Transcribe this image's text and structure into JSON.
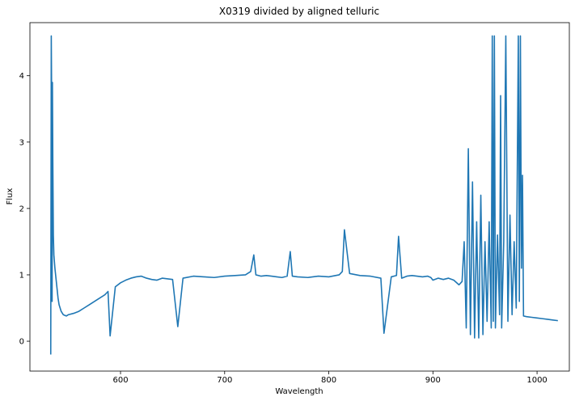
{
  "chart_data": {
    "type": "line",
    "title": "X0319 divided by aligned telluric",
    "xlabel": "Wavelength",
    "ylabel": "Flux",
    "xlim": [
      513,
      1031
    ],
    "ylim": [
      -0.45,
      4.8
    ],
    "xticks": [
      600,
      700,
      800,
      900,
      1000
    ],
    "yticks": [
      0,
      1,
      2,
      3,
      4
    ],
    "grid": false,
    "series": [
      {
        "color": "#1f77b4",
        "x": [
          533,
          533.5,
          534,
          534.3,
          534.6,
          535,
          535.5,
          536,
          537,
          538,
          539,
          540,
          541,
          542,
          543,
          545,
          548,
          550,
          555,
          560,
          565,
          570,
          575,
          580,
          585,
          588,
          590,
          595,
          600,
          605,
          610,
          615,
          620,
          625,
          630,
          635,
          640,
          650,
          655,
          660,
          670,
          680,
          690,
          700,
          710,
          720,
          725,
          728,
          730,
          735,
          740,
          745,
          750,
          755,
          760,
          763,
          765,
          770,
          780,
          790,
          800,
          810,
          813,
          815,
          820,
          830,
          840,
          850,
          853,
          860,
          865,
          867,
          870,
          875,
          880,
          890,
          895,
          898,
          900,
          905,
          910,
          915,
          920,
          925,
          928,
          930,
          932,
          934,
          936,
          938,
          940,
          942,
          944,
          946,
          948,
          950,
          952,
          954,
          956,
          957,
          958,
          959,
          960,
          962,
          964,
          965,
          966,
          968,
          970,
          972,
          974,
          976,
          978,
          980,
          982,
          983,
          984,
          985,
          986,
          987,
          990,
          995,
          1000,
          1005,
          1010,
          1015,
          1020
        ],
        "values": [
          -0.2,
          4.6,
          3.3,
          0.6,
          3.9,
          2.7,
          1.6,
          1.3,
          1.1,
          0.95,
          0.8,
          0.65,
          0.55,
          0.5,
          0.45,
          0.4,
          0.38,
          0.4,
          0.42,
          0.45,
          0.5,
          0.55,
          0.6,
          0.65,
          0.7,
          0.75,
          0.08,
          0.82,
          0.88,
          0.92,
          0.95,
          0.97,
          0.98,
          0.95,
          0.93,
          0.92,
          0.95,
          0.93,
          0.22,
          0.95,
          0.98,
          0.97,
          0.96,
          0.98,
          0.99,
          1.0,
          1.05,
          1.3,
          1.0,
          0.98,
          0.99,
          0.98,
          0.97,
          0.96,
          0.98,
          1.35,
          0.98,
          0.97,
          0.96,
          0.98,
          0.97,
          1.0,
          1.05,
          1.68,
          1.02,
          0.99,
          0.98,
          0.95,
          0.12,
          0.97,
          0.99,
          1.58,
          0.95,
          0.98,
          0.99,
          0.97,
          0.98,
          0.96,
          0.92,
          0.95,
          0.93,
          0.95,
          0.92,
          0.85,
          0.9,
          1.5,
          0.2,
          2.9,
          0.1,
          2.4,
          0.05,
          1.8,
          0.05,
          2.2,
          0.1,
          1.5,
          0.3,
          1.8,
          0.2,
          4.6,
          0.3,
          4.6,
          0.2,
          1.6,
          0.4,
          3.7,
          0.2,
          1.5,
          4.6,
          0.3,
          1.9,
          0.4,
          1.5,
          0.5,
          4.6,
          0.6,
          4.6,
          1.1,
          2.5,
          0.38,
          0.37,
          0.36,
          0.35,
          0.34,
          0.33,
          0.32,
          0.31
        ]
      }
    ]
  }
}
